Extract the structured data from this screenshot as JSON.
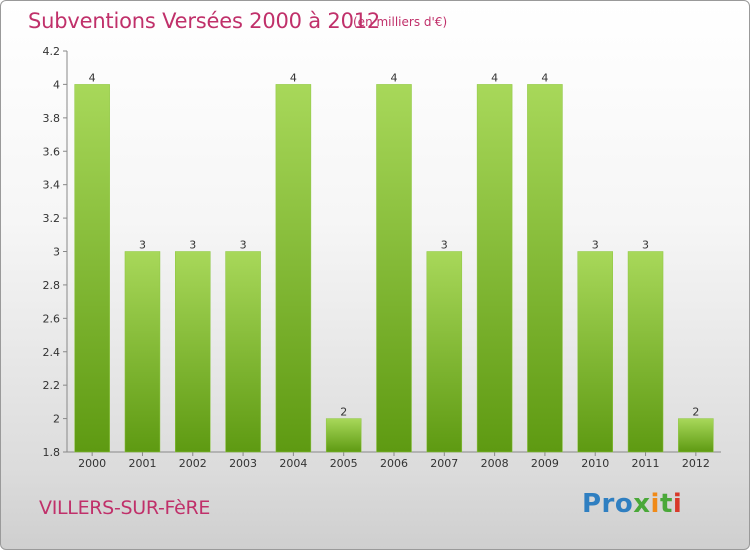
{
  "title": "Subventions Versées 2000 à 2012",
  "subtitle": "(en milliers d'€)",
  "commune": "VILLERS-SUR-FèRE",
  "logo": {
    "p1": "Pro",
    "p2": "x",
    "p3": "i",
    "p4": "t",
    "p5": "i"
  },
  "colors": {
    "title": "#c0306a",
    "bar_light": "#a8d85a",
    "bar_dark": "#5e9a12",
    "axis": "#888888"
  },
  "chart_data": {
    "type": "bar",
    "categories": [
      "2000",
      "2001",
      "2002",
      "2003",
      "2004",
      "2005",
      "2006",
      "2007",
      "2008",
      "2009",
      "2010",
      "2011",
      "2012"
    ],
    "values": [
      4,
      3,
      3,
      3,
      4,
      2,
      4,
      3,
      4,
      4,
      3,
      3,
      2
    ],
    "value_labels": [
      "4",
      "3",
      "3",
      "3",
      "4",
      "2",
      "4",
      "3",
      "4",
      "4",
      "3",
      "3",
      "2"
    ],
    "yticks": [
      "1.8",
      "2",
      "2.2",
      "2.4",
      "2.6",
      "2.8",
      "3",
      "3.2",
      "3.4",
      "3.6",
      "3.8",
      "4",
      "4.2"
    ],
    "ylim": [
      1.8,
      4.2
    ],
    "grid": false,
    "legend": "none"
  }
}
